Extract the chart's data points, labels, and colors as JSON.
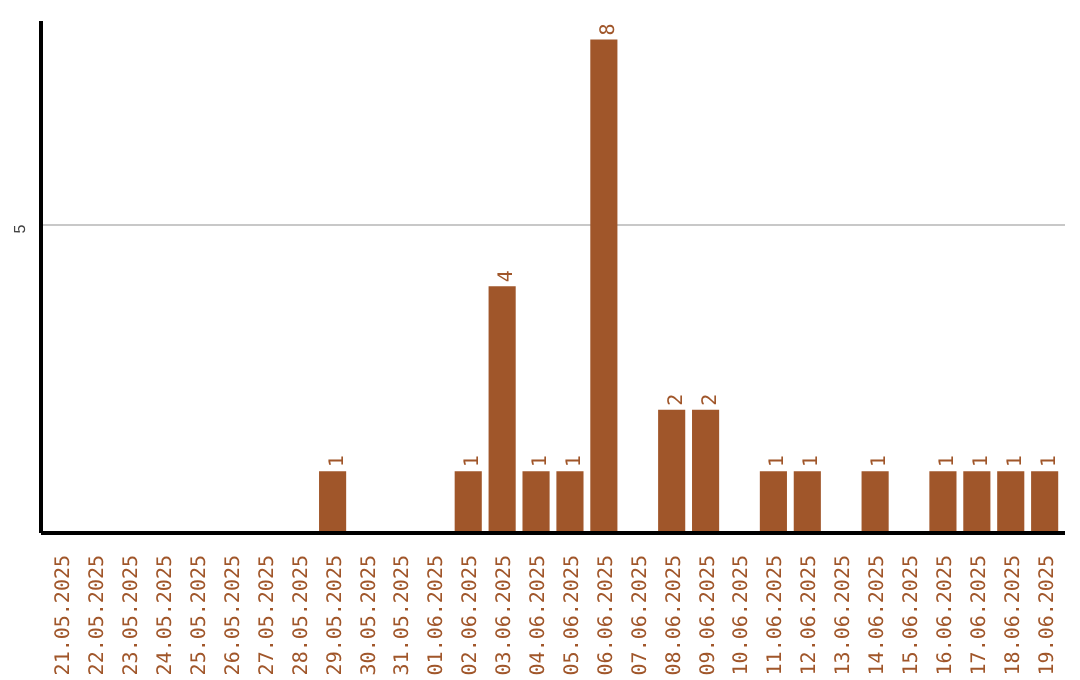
{
  "chart_data": {
    "type": "bar",
    "categories": [
      "21.05.2025",
      "22.05.2025",
      "23.05.2025",
      "24.05.2025",
      "25.05.2025",
      "26.05.2025",
      "27.05.2025",
      "28.05.2025",
      "29.05.2025",
      "30.05.2025",
      "31.05.2025",
      "01.06.2025",
      "02.06.2025",
      "03.06.2025",
      "04.06.2025",
      "05.06.2025",
      "06.06.2025",
      "07.06.2025",
      "08.06.2025",
      "09.06.2025",
      "10.06.2025",
      "11.06.2025",
      "12.06.2025",
      "13.06.2025",
      "14.06.2025",
      "15.06.2025",
      "16.06.2025",
      "17.06.2025",
      "18.06.2025",
      "19.06.2025"
    ],
    "values": [
      0,
      0,
      0,
      0,
      0,
      0,
      0,
      0,
      1,
      0,
      0,
      0,
      1,
      4,
      1,
      1,
      8,
      0,
      2,
      2,
      0,
      1,
      1,
      0,
      1,
      0,
      1,
      1,
      1,
      1
    ],
    "value_labels": [
      null,
      null,
      null,
      null,
      null,
      null,
      null,
      null,
      "1",
      null,
      null,
      null,
      "1",
      "4",
      "1",
      "1",
      "8",
      null,
      "2",
      "2",
      null,
      "1",
      "1",
      null,
      "1",
      null,
      "1",
      "1",
      "1",
      "1"
    ],
    "color": "#a0562a",
    "ylim": [
      0,
      8.3
    ],
    "yticks": [
      5
    ],
    "grid": "y"
  }
}
